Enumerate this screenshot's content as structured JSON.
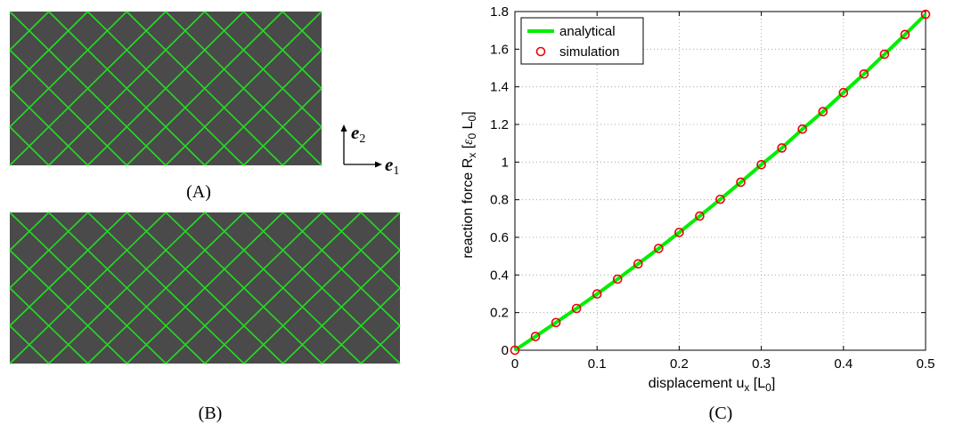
{
  "panels": {
    "A": {
      "caption": "(A)",
      "cols": 8,
      "rows": 4
    },
    "B": {
      "caption": "(B)",
      "cols": 10,
      "rows": 4
    },
    "C": {
      "caption": "(C)"
    },
    "axes_glyph": {
      "e2": "e",
      "e2_sub": "2",
      "e1": "e",
      "e1_sub": "1"
    }
  },
  "colors": {
    "background": "#4a4a4a",
    "lattice": "#22dd22",
    "analytical": "#00ee00",
    "marker": "#ee0000"
  },
  "chart_data": {
    "type": "line",
    "x_label_main": "displacement  u",
    "x_label_sub": "x",
    "x_label_unit_open": " [L",
    "x_label_unit_sub": "0",
    "x_label_close": "]",
    "y_label_main": "reaction force  R",
    "y_label_sub": "x",
    "y_label_unit_open": " [",
    "y_label_eps": "ε",
    "y_label_eps_sub": "0",
    "y_label_L": " L",
    "y_label_L_sub": "0",
    "y_label_close": "]",
    "xlim": [
      0,
      0.5
    ],
    "ylim": [
      0,
      1.8
    ],
    "xticks": [
      "0",
      "0.1",
      "0.2",
      "0.3",
      "0.4",
      "0.5"
    ],
    "yticks": [
      "0",
      "0.2",
      "0.4",
      "0.6",
      "0.8",
      "1",
      "1.2",
      "1.4",
      "1.6",
      "1.8"
    ],
    "grid": true,
    "legend_position": "top-left",
    "series": [
      {
        "name": "analytical",
        "style": "line",
        "x": [
          0,
          0.025,
          0.05,
          0.075,
          0.1,
          0.125,
          0.15,
          0.175,
          0.2,
          0.225,
          0.25,
          0.275,
          0.3,
          0.325,
          0.35,
          0.375,
          0.4,
          0.425,
          0.45,
          0.475,
          0.5
        ],
        "y": [
          0,
          0.073,
          0.147,
          0.222,
          0.299,
          0.378,
          0.459,
          0.541,
          0.626,
          0.713,
          0.802,
          0.893,
          0.986,
          1.075,
          1.175,
          1.268,
          1.369,
          1.468,
          1.573,
          1.678,
          1.785
        ]
      },
      {
        "name": "simulation",
        "style": "marker",
        "x": [
          0,
          0.025,
          0.05,
          0.075,
          0.1,
          0.125,
          0.15,
          0.175,
          0.2,
          0.225,
          0.25,
          0.275,
          0.3,
          0.325,
          0.35,
          0.375,
          0.4,
          0.425,
          0.45,
          0.475,
          0.5
        ],
        "y": [
          0,
          0.073,
          0.147,
          0.222,
          0.299,
          0.378,
          0.459,
          0.541,
          0.626,
          0.713,
          0.802,
          0.893,
          0.986,
          1.075,
          1.175,
          1.268,
          1.369,
          1.468,
          1.573,
          1.678,
          1.785
        ]
      }
    ]
  }
}
